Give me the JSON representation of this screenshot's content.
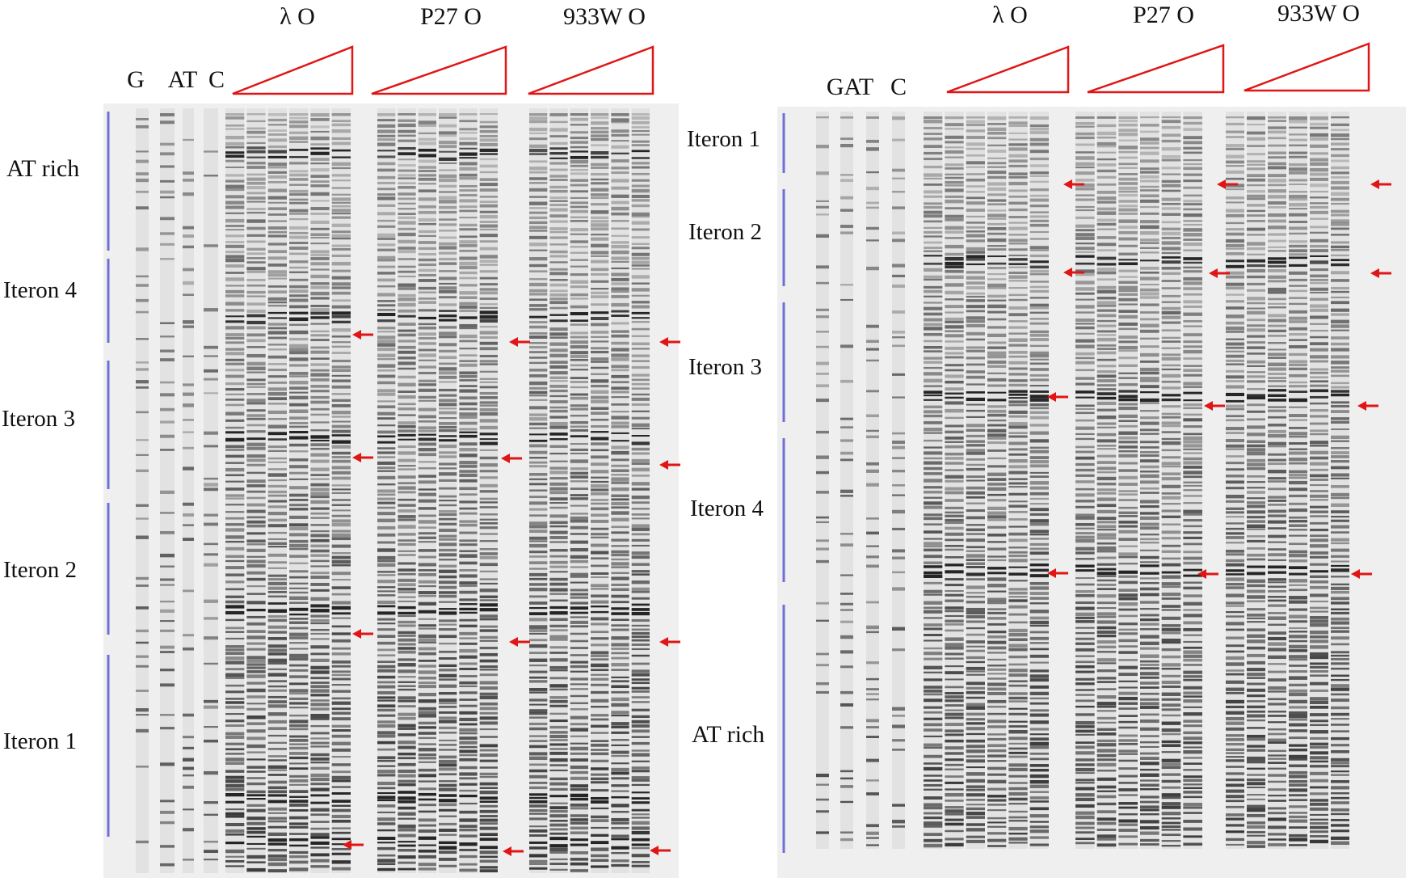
{
  "colors": {
    "gel_background": "#efefef",
    "band_dark": "#1a1a1a",
    "annotation_line": "#6f6fd8",
    "wedge": "#e01515",
    "arrow": "#e01515"
  },
  "panels": [
    {
      "sequencing_labels": [
        "G",
        "AT",
        "C"
      ],
      "group_labels": [
        "λ O",
        "P27  O",
        "933W  O"
      ],
      "region_labels": [
        "AT rich",
        "Iteron 4",
        "Iteron 3",
        "Iteron 2",
        "Iteron 1"
      ],
      "lanes_per_group": 6
    },
    {
      "sequencing_labels": [
        "GAT",
        "C"
      ],
      "group_labels": [
        "λ O",
        "P27  O",
        "933W  O"
      ],
      "region_labels": [
        "Iteron 1",
        "Iteron 2",
        "Iteron 3",
        "Iteron 4",
        "AT rich"
      ],
      "lanes_per_group": 6
    }
  ]
}
